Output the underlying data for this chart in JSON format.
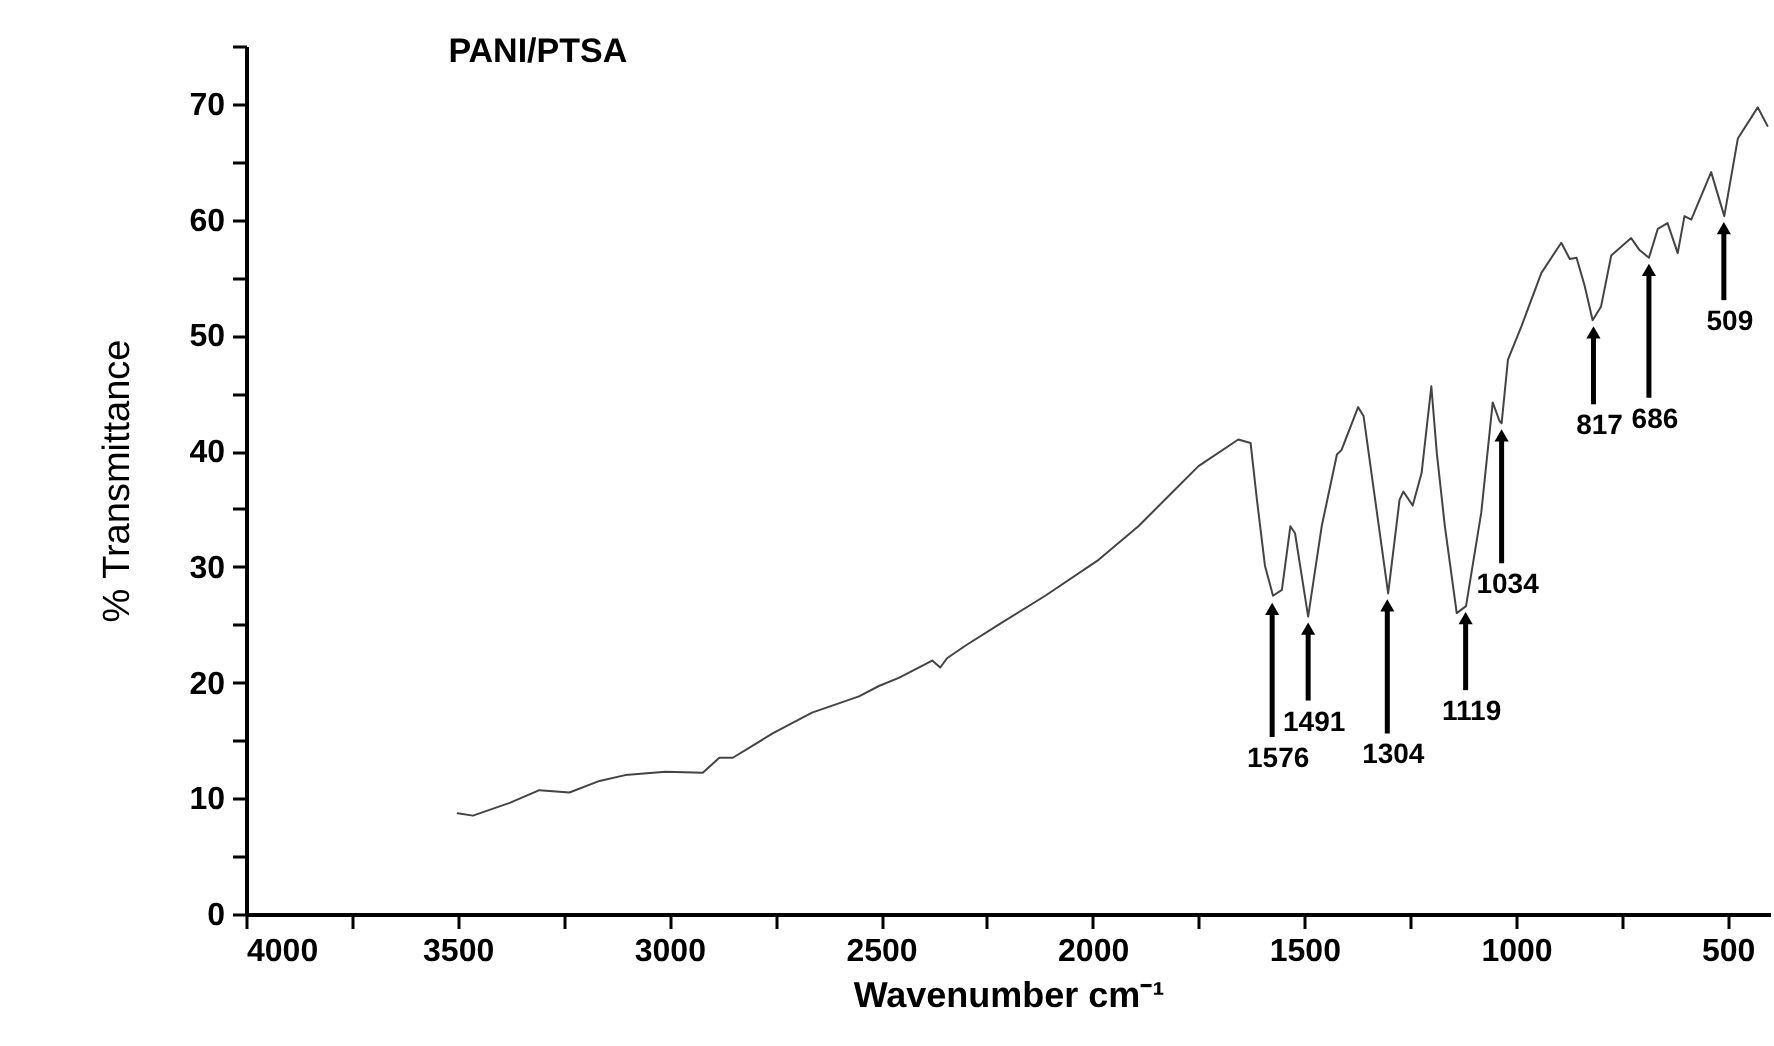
{
  "chart_data": {
    "type": "line",
    "title": "PANI/PTSA",
    "xlabel": "Wavenumber cm⁻¹",
    "ylabel": "% Transmittance",
    "xlim": [
      4000,
      400
    ],
    "ylim": [
      0,
      75
    ],
    "xticks": [
      4000,
      {
        "value": 3750,
        "label": null
      },
      3500,
      {
        "value": 3250,
        "label": null
      },
      3000,
      {
        "value": 2750,
        "label": null
      },
      2500,
      {
        "value": 2250,
        "label": null
      },
      2000,
      {
        "value": 1750,
        "label": null
      },
      1500,
      {
        "value": 1250,
        "label": null
      },
      1000,
      {
        "value": 750,
        "label": null
      },
      500
    ],
    "yticks": [
      0,
      {
        "value": 5,
        "label": null
      },
      10,
      {
        "value": 15,
        "label": null
      },
      20,
      {
        "value": 25,
        "label": null
      },
      30,
      {
        "value": 35,
        "label": null
      },
      40,
      {
        "value": 45,
        "label": null
      },
      50,
      {
        "value": 55,
        "label": null
      },
      60,
      {
        "value": 65,
        "label": null
      },
      70,
      {
        "value": 75,
        "label": null
      }
    ],
    "grid": false,
    "marker": "none",
    "line_style": "solid",
    "x": [
      3500,
      3464,
      3377,
      3307,
      3236,
      3165,
      3104,
      3009,
      2921,
      2882,
      2850,
      2756,
      2663,
      2552,
      2505,
      2458,
      2379,
      2360,
      2344,
      2300,
      2222,
      2112,
      1986,
      1892,
      1813,
      1750,
      1656,
      1627,
      1612,
      1593,
      1574,
      1553,
      1533,
      1522,
      1491,
      1459,
      1423,
      1412,
      1373,
      1360,
      1302,
      1275,
      1266,
      1244,
      1223,
      1200,
      1187,
      1168,
      1140,
      1118,
      1082,
      1055,
      1039,
      1034,
      1019,
      987,
      940,
      893,
      873,
      857,
      838,
      819,
      799,
      775,
      728,
      709,
      686,
      665,
      642,
      618,
      602,
      586,
      539,
      508,
      476,
      429,
      406
    ],
    "series": [
      {
        "color": "#444444",
        "values": [
          8.7,
          8.5,
          9.6,
          10.7,
          10.5,
          11.5,
          12.0,
          12.3,
          12.2,
          13.5,
          13.5,
          15.6,
          17.4,
          18.8,
          19.7,
          20.4,
          21.9,
          21.3,
          22.1,
          23.2,
          25.0,
          27.5,
          30.6,
          33.5,
          36.4,
          38.7,
          41.0,
          40.7,
          35.8,
          30.1,
          27.5,
          28.0,
          33.5,
          32.9,
          25.7,
          33.5,
          39.7,
          40.1,
          43.8,
          43.0,
          27.7,
          35.8,
          36.5,
          35.3,
          38.1,
          45.6,
          39.8,
          33.5,
          26.0,
          26.6,
          34.7,
          44.2,
          42.6,
          42.4,
          47.9,
          50.8,
          55.4,
          58.0,
          56.6,
          56.7,
          54.3,
          51.3,
          52.5,
          56.9,
          58.4,
          57.4,
          56.7,
          59.2,
          59.7,
          57.1,
          60.3,
          60.0,
          64.1,
          60.3,
          67.0,
          69.7,
          68.1
        ]
      }
    ],
    "annotations": [
      {
        "text": "1576",
        "x": 1576,
        "y": 27.4
      },
      {
        "text": "1491",
        "x": 1491,
        "y": 25.7
      },
      {
        "text": "1304",
        "x": 1304,
        "y": 27.7
      },
      {
        "text": "1119",
        "x": 1119,
        "y": 26.6
      },
      {
        "text": "1034",
        "x": 1034,
        "y": 42.4
      },
      {
        "text": "817",
        "x": 817,
        "y": 51.3
      },
      {
        "text": "686",
        "x": 686,
        "y": 56.7
      },
      {
        "text": "509",
        "x": 509,
        "y": 60.3
      }
    ]
  }
}
